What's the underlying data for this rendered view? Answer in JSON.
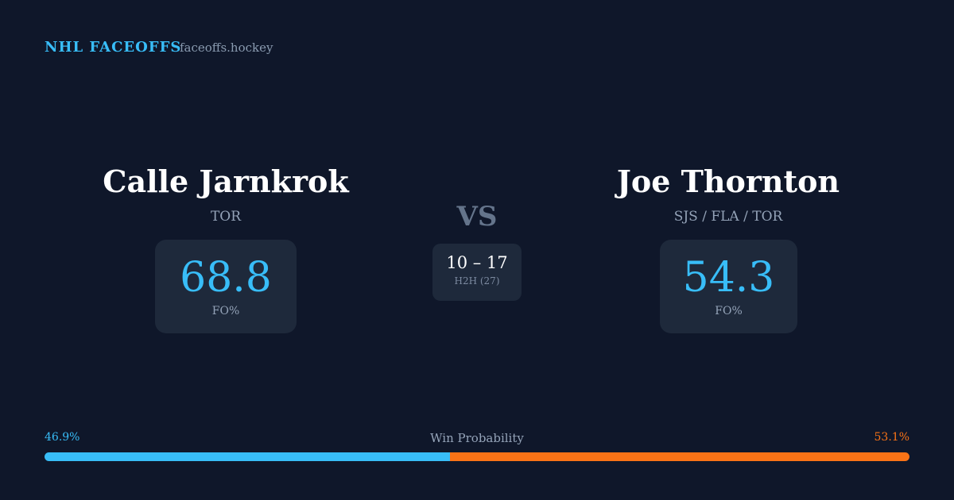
{
  "header": {
    "title": "NHL FACEOFFS",
    "site": "faceoffs.hockey"
  },
  "players": [
    {
      "name": "Calle Jarnkrok",
      "teams": "TOR",
      "fo_pct": 68.8,
      "fo_label": "FO%"
    },
    {
      "name": "Joe Thornton",
      "teams": "SJS / FLA / TOR",
      "fo_pct": 54.3,
      "fo_label": "FO%"
    }
  ],
  "vs": "VS",
  "h2h": {
    "score": "10 – 17",
    "label": "H2H (27)"
  },
  "win_probability": {
    "label": "Win Probability",
    "left": {
      "value": 46.9,
      "label": "46.9%",
      "color": "#38bdf8"
    },
    "right": {
      "value": 53.1,
      "label": "53.1%",
      "color": "#f97316"
    }
  }
}
